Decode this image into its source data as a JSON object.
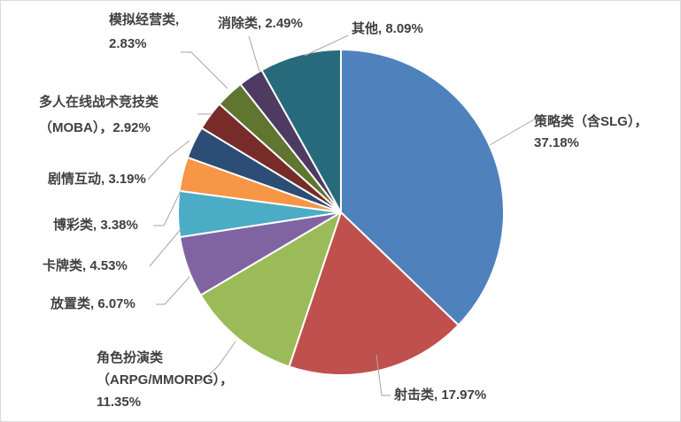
{
  "chart_data": {
    "type": "pie",
    "start_angle_deg": 0,
    "direction": "clockwise",
    "legend": "none",
    "slices": [
      {
        "name": "策略类（含SLG）",
        "value": 37.18,
        "color": "#4f81bd",
        "label_lines": [
          "策略类（含SLG），",
          "37.18%"
        ]
      },
      {
        "name": "射击类",
        "value": 17.97,
        "color": "#c0504d",
        "label_lines": [
          "射击类, 17.97%"
        ]
      },
      {
        "name": "角色扮演类（ARPG/MMORPG）",
        "value": 11.35,
        "color": "#9bbb59",
        "label_lines": [
          "角色扮演类",
          "（ARPG/MMORPG），",
          "11.35%"
        ]
      },
      {
        "name": "放置类",
        "value": 6.07,
        "color": "#8064a2",
        "label_lines": [
          "放置类, 6.07%"
        ]
      },
      {
        "name": "卡牌类",
        "value": 4.53,
        "color": "#4bacc6",
        "label_lines": [
          "卡牌类, 4.53%"
        ]
      },
      {
        "name": "博彩类",
        "value": 3.38,
        "color": "#f79646",
        "label_lines": [
          "博彩类, 3.38%"
        ]
      },
      {
        "name": "剧情互动",
        "value": 3.19,
        "color": "#2c4d75",
        "label_lines": [
          "剧情互动, 3.19%"
        ]
      },
      {
        "name": "多人在线战术竞技类（MOBA）",
        "value": 2.92,
        "color": "#772c2a",
        "label_lines": [
          "多人在线战术竞技类",
          "（MOBA），2.92%"
        ]
      },
      {
        "name": "模拟经营类",
        "value": 2.83,
        "color": "#5f7530",
        "label_lines": [
          "模拟经营类,",
          "2.83%"
        ]
      },
      {
        "name": "消除类",
        "value": 2.49,
        "color": "#4d3b62",
        "label_lines": [
          "消除类, 2.49%"
        ]
      },
      {
        "name": "其他",
        "value": 8.09,
        "color": "#276a7c",
        "label_lines": [
          "其他, 8.09%"
        ]
      }
    ]
  }
}
